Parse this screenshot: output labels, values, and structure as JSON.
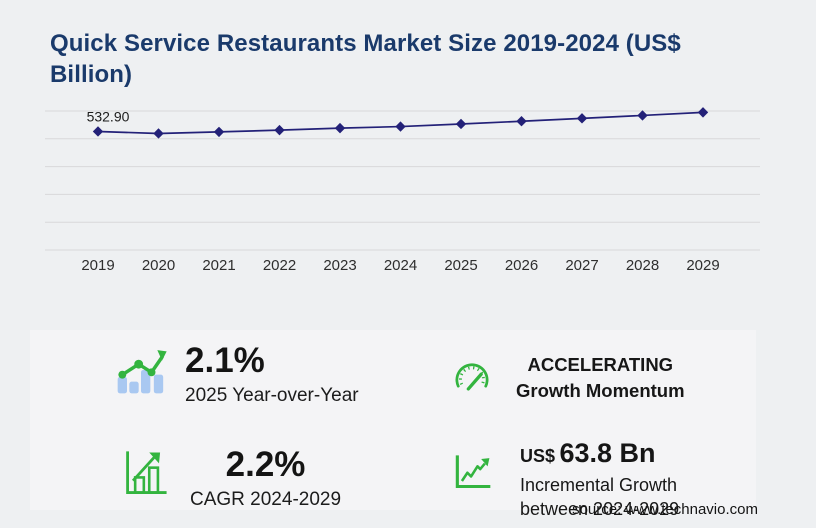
{
  "page": {
    "title": "Quick Service Restaurants Market Size 2019-2024 (US$ Billion)",
    "source": "source: www.technavio.com"
  },
  "colors": {
    "navy_title": "#1a3a6b",
    "line_navy": "#232178",
    "accent_green": "#33b43f",
    "bar_light_blue": "#a9c8f1",
    "gridline": "#d8d8da",
    "background": "#eef0f2",
    "panel": "#f4f4f6"
  },
  "chart_data": {
    "type": "line",
    "title": "Quick Service Restaurants Market Size 2019-2024 (US$ Billion)",
    "x": [
      2019,
      2020,
      2021,
      2022,
      2023,
      2024,
      2025,
      2026,
      2027,
      2028,
      2029
    ],
    "values": [
      532.9,
      524.0,
      531.0,
      539.0,
      548.0,
      555.0,
      566.7,
      579.0,
      592.0,
      605.0,
      618.8
    ],
    "unit": "US$ Billion",
    "ylim": [
      0,
      625
    ],
    "gridline_count": 6,
    "grid": "horizontal-only",
    "legend": "none",
    "marker": "diamond",
    "line_color": "#232178",
    "point_labels": [
      {
        "index": 0,
        "text": "532.90"
      }
    ]
  },
  "stats": {
    "yoy": {
      "icon": "trend-bars-icon",
      "value": "2.1%",
      "label": "2025 Year-over-Year"
    },
    "momentum": {
      "icon": "speedometer-icon",
      "line1": "ACCELERATING",
      "line2": "Growth Momentum"
    },
    "cagr": {
      "icon": "bar-growth-icon",
      "value": "2.2%",
      "label": "CAGR 2024-2029"
    },
    "incremental": {
      "icon": "line-growth-icon",
      "currency": "US$",
      "value": "63.8 Bn",
      "line1": "Incremental Growth",
      "line2": "between 2024-2029"
    }
  }
}
